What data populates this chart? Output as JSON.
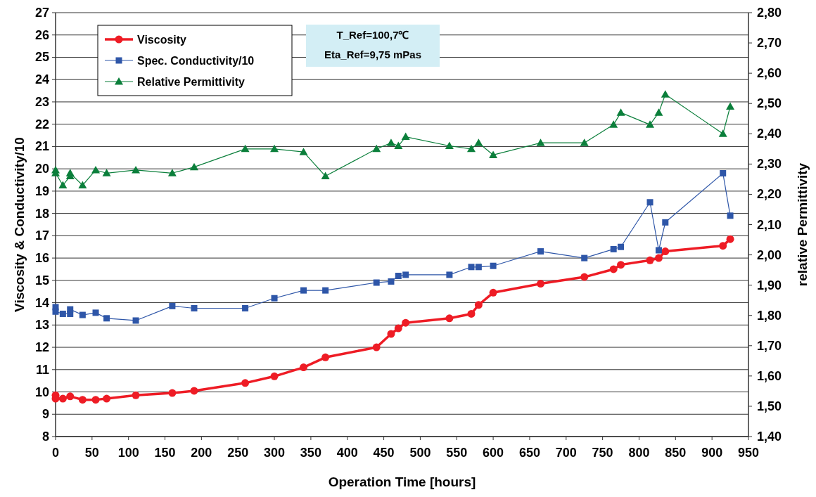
{
  "chart_data": {
    "type": "line",
    "xlabel": "Operation Time [hours]",
    "ylabel": "Viscosity & Conductivity/10",
    "y2label": "relative Permittivity",
    "x": [
      0,
      0,
      10,
      20,
      20,
      37,
      55,
      70,
      110,
      160,
      190,
      260,
      300,
      340,
      370,
      440,
      460,
      470,
      480,
      540,
      570,
      580,
      600,
      665,
      725,
      765,
      775,
      815,
      827,
      836,
      915,
      925
    ],
    "series": [
      {
        "name": "Viscosity",
        "color": "#ee1c25",
        "marker": "circle",
        "values": [
          9.85,
          9.7,
          9.7,
          null,
          9.8,
          9.65,
          9.65,
          9.7,
          9.85,
          9.95,
          10.05,
          10.4,
          10.7,
          11.1,
          11.55,
          12.0,
          12.6,
          12.85,
          13.1,
          13.3,
          13.5,
          13.9,
          14.45,
          14.85,
          15.15,
          15.5,
          15.7,
          15.9,
          16.0,
          16.3,
          16.55,
          16.85
        ]
      },
      {
        "name": "Spec. Conductivity/10",
        "color": "#2e56a8",
        "marker": "square",
        "values": [
          13.8,
          13.6,
          13.5,
          13.5,
          13.7,
          13.45,
          13.55,
          13.3,
          13.2,
          13.85,
          13.75,
          13.75,
          14.2,
          14.55,
          14.55,
          14.9,
          14.95,
          15.2,
          15.25,
          15.25,
          15.6,
          15.6,
          15.65,
          16.3,
          16.0,
          16.4,
          16.5,
          18.5,
          16.35,
          17.6,
          19.8,
          17.9
        ]
      },
      {
        "name": "Relative Permittivity",
        "color": "#0b7f3b",
        "marker": "triangle",
        "axis": "y2",
        "values": [
          2.28,
          2.27,
          2.23,
          2.26,
          2.27,
          2.23,
          2.28,
          2.27,
          2.28,
          2.27,
          2.29,
          2.35,
          2.35,
          2.34,
          2.26,
          2.35,
          2.37,
          2.36,
          2.39,
          2.36,
          2.35,
          2.37,
          2.33,
          2.37,
          2.37,
          2.43,
          2.47,
          2.43,
          2.47,
          2.53,
          2.4,
          2.49
        ]
      }
    ],
    "xlim": [
      0,
      950
    ],
    "xticks": [
      0,
      50,
      100,
      150,
      200,
      250,
      300,
      350,
      400,
      450,
      500,
      550,
      600,
      650,
      700,
      750,
      800,
      850,
      900,
      950
    ],
    "ylim": [
      8,
      27
    ],
    "yticks": [
      8,
      9,
      10,
      11,
      12,
      13,
      14,
      15,
      16,
      17,
      18,
      19,
      20,
      21,
      22,
      23,
      24,
      25,
      26,
      27
    ],
    "y2lim": [
      1.4,
      2.8
    ],
    "y2ticks": [
      {
        "value": 1.4,
        "label": "1,40"
      },
      {
        "value": 1.5,
        "label": "1,50"
      },
      {
        "value": 1.6,
        "label": "1,60"
      },
      {
        "value": 1.7,
        "label": "1,70"
      },
      {
        "value": 1.8,
        "label": "1,80"
      },
      {
        "value": 1.9,
        "label": "1,90"
      },
      {
        "value": 2.0,
        "label": "2,00"
      },
      {
        "value": 2.1,
        "label": "2,10"
      },
      {
        "value": 2.2,
        "label": "2,20"
      },
      {
        "value": 2.3,
        "label": "2,30"
      },
      {
        "value": 2.4,
        "label": "2,40"
      },
      {
        "value": 2.5,
        "label": "2,50"
      },
      {
        "value": 2.6,
        "label": "2,60"
      },
      {
        "value": 2.7,
        "label": "2,70"
      },
      {
        "value": 2.8,
        "label": "2,80"
      }
    ],
    "grid": "y",
    "legend": "top left",
    "annotations": [
      "T_Ref=100,7℃",
      "Eta_Ref=9,75 mPas"
    ]
  }
}
